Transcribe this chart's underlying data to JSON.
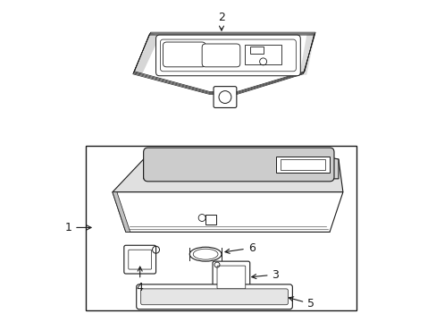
{
  "bg_color": "#ffffff",
  "line_color": "#1a1a1a",
  "fig_width": 4.89,
  "fig_height": 3.6,
  "dpi": 100,
  "gray_fill": "#d8d8d8",
  "light_gray": "#e8e8e8"
}
